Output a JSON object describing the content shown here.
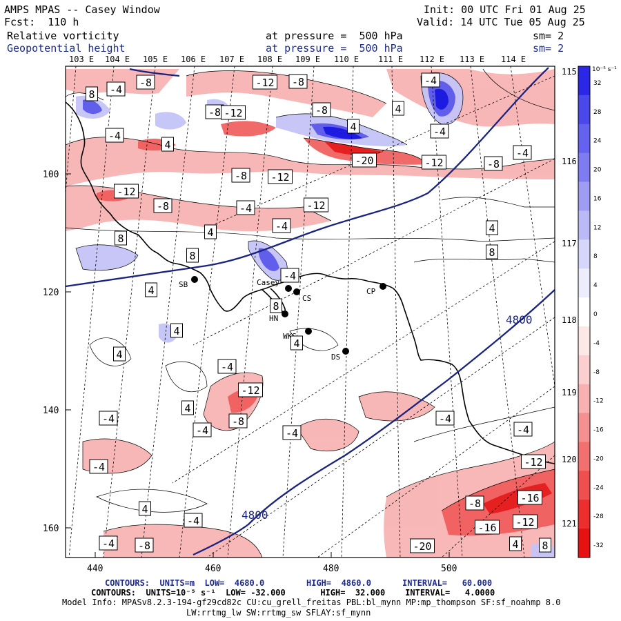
{
  "header": {
    "title": "AMPS MPAS -- Casey Window",
    "init": "Init: 00 UTC Fri 01 Aug 25",
    "fcst": "Fcst:  110 h",
    "valid": "Valid: 14 UTC Tue 05 Aug 25",
    "field1_name": "Relative vorticity",
    "field1_level": "at pressure =  500 hPa",
    "field1_sm": "sm= 2",
    "field2_name": "Geopotential height",
    "field2_level": "at pressure =  500 hPa",
    "field2_sm": "sm= 2"
  },
  "axes": {
    "top_ticks": [
      "103 E",
      "104 E",
      "105 E",
      "106 E",
      "107 E",
      "108 E",
      "109 E",
      "110 E",
      "111 E",
      "112 E",
      "113 E",
      "114 E"
    ],
    "right_ticks": [
      "115 E",
      "116 E",
      "117 E",
      "118 E",
      "119 E",
      "120 E",
      "121 E"
    ],
    "left_ticks": [
      "100",
      "120",
      "140",
      "160"
    ],
    "bottom_ticks": [
      "440",
      "460",
      "480",
      "500"
    ]
  },
  "stations": [
    {
      "name": "SB"
    },
    {
      "name": "Casey"
    },
    {
      "name": "CS"
    },
    {
      "name": "HN"
    },
    {
      "name": "WKS"
    },
    {
      "name": "DS"
    },
    {
      "name": "CP"
    }
  ],
  "height_labels": [
    "4800",
    "4800"
  ],
  "vorticity_labels": [
    "8",
    "-4",
    "-8",
    "-12",
    "-8",
    "-4",
    "-8",
    "4",
    "-8",
    "-12",
    "-4",
    "4",
    "4",
    "-4",
    "-20",
    "-12",
    "-8",
    "-4",
    "-12",
    "-8",
    "-8",
    "-12",
    "-4",
    "-12",
    "-4",
    "4",
    "8",
    "8",
    "4",
    "8",
    "4",
    "-4",
    "8",
    "4",
    "-4",
    "4",
    "4",
    "-12",
    "4",
    "-8",
    "-4",
    "-4",
    "-4",
    "-4",
    "-4",
    "4",
    "-4",
    "-4",
    "-12",
    "-16",
    "-8",
    "-16",
    "-12",
    "-20",
    "-8",
    "-4",
    "4",
    "8"
  ],
  "colorbar": {
    "unit": "10⁻⁵ s⁻¹",
    "ticks": [
      "32",
      "28",
      "24",
      "20",
      "16",
      "12",
      "8",
      "4",
      "0",
      "-4",
      "-8",
      "-12",
      "-16",
      "-20",
      "-24",
      "-28",
      "-32"
    ],
    "colors": [
      "#2a28e6",
      "#4a48ea",
      "#6462ee",
      "#7e7cf0",
      "#9e9cf3",
      "#bcbaf6",
      "#d6d5fa",
      "#ececfd",
      "#ffffff",
      "#fde8e8",
      "#fbcfcf",
      "#f8b0b0",
      "#f59090",
      "#f27070",
      "#ef4f4f",
      "#ec2e2e",
      "#e61212"
    ]
  },
  "footer": {
    "line1_a": "CONTOURS:  UNITS=m  LOW=  4680.0",
    "line1_b": "HIGH=  4860.0",
    "line1_c": "INTERVAL=   60.000",
    "line2": "CONTOURS:  UNITS=10⁻⁵ s⁻¹  LOW= -32.000       HIGH=  32.000    INTERVAL=   4.0000",
    "line3": "Model Info: MPASv8.2.3-194-gf29cd82c CU:cu_grell_freitas PBL:bl_mynn MP:mp_thompson SF:sf_noahmp 8.0",
    "line4": "LW:rrtmg_lw SW:rrtmg_sw SFLAY:sf_mynn"
  }
}
